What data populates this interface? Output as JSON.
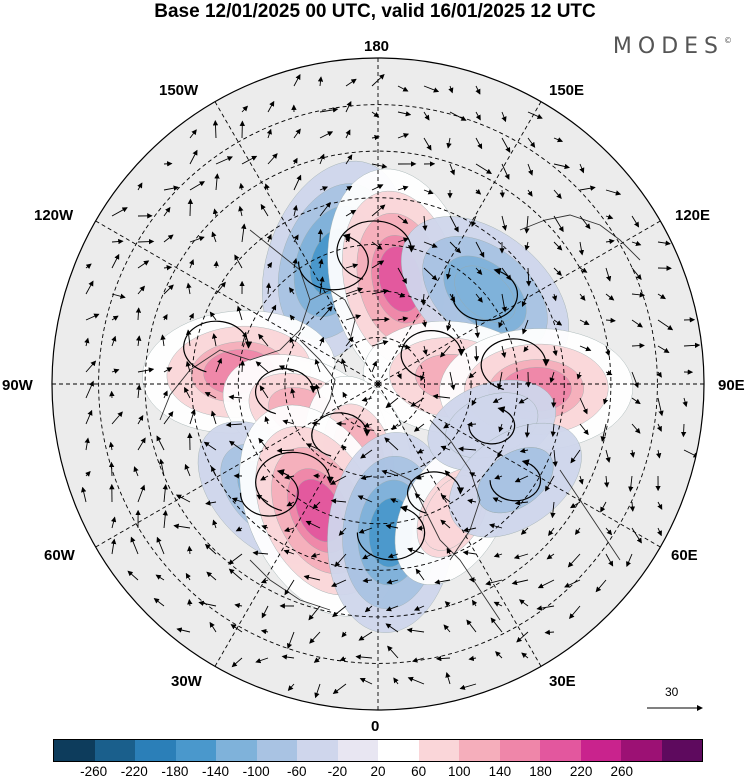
{
  "title": "Base 12/01/2025 00 UTC, valid 16/01/2025 12 UTC",
  "brand": "MODES",
  "brand_mark": "©",
  "longitude_labels": {
    "top": "180",
    "bottom": "0",
    "left": "90W",
    "right": "90E",
    "upper_left_1": "150W",
    "upper_left_2": "120W",
    "upper_right_1": "150E",
    "upper_right_2": "120E",
    "lower_left_1": "60W",
    "lower_left_2": "30W",
    "lower_right_1": "60E",
    "lower_right_2": "30E"
  },
  "vector_scale_label": "30",
  "colorbar": {
    "colors": [
      "#0d3c5c",
      "#1a5f8c",
      "#2b7fb8",
      "#4a98cc",
      "#7fb2da",
      "#a9c3e3",
      "#cfd6ec",
      "#e8e6f2",
      "#ffffff",
      "#fad6d9",
      "#f5aebb",
      "#ef86a9",
      "#e3579e",
      "#c9238d",
      "#9c1174",
      "#5e0a5e"
    ],
    "tick_labels": [
      "-260",
      "-220",
      "-180",
      "-140",
      "-100",
      "-60",
      "-20",
      "20",
      "60",
      "100",
      "140",
      "180",
      "220",
      "260"
    ]
  },
  "anomaly_centers": [
    {
      "lon": -160,
      "colat": 28,
      "value": -140
    },
    {
      "lon": 168,
      "colat": 23,
      "value": 160
    },
    {
      "lon": 130,
      "colat": 30,
      "value": -120
    },
    {
      "lon": 95,
      "colat": 16,
      "value": 100
    },
    {
      "lon": 88,
      "colat": 34,
      "value": 120
    },
    {
      "lon": -95,
      "colat": 30,
      "value": 120
    },
    {
      "lon": -68,
      "colat": 17,
      "value": 90
    },
    {
      "lon": -45,
      "colat": 33,
      "value": -90
    },
    {
      "lon": -15,
      "colat": 16,
      "value": 80
    },
    {
      "lon": -25,
      "colat": 30,
      "value": 160
    },
    {
      "lon": 5,
      "colat": 32,
      "value": -130
    },
    {
      "lon": 30,
      "colat": 32,
      "value": 70
    },
    {
      "lon": 70,
      "colat": 26,
      "value": -40
    },
    {
      "lon": 55,
      "colat": 36,
      "value": -60
    }
  ]
}
